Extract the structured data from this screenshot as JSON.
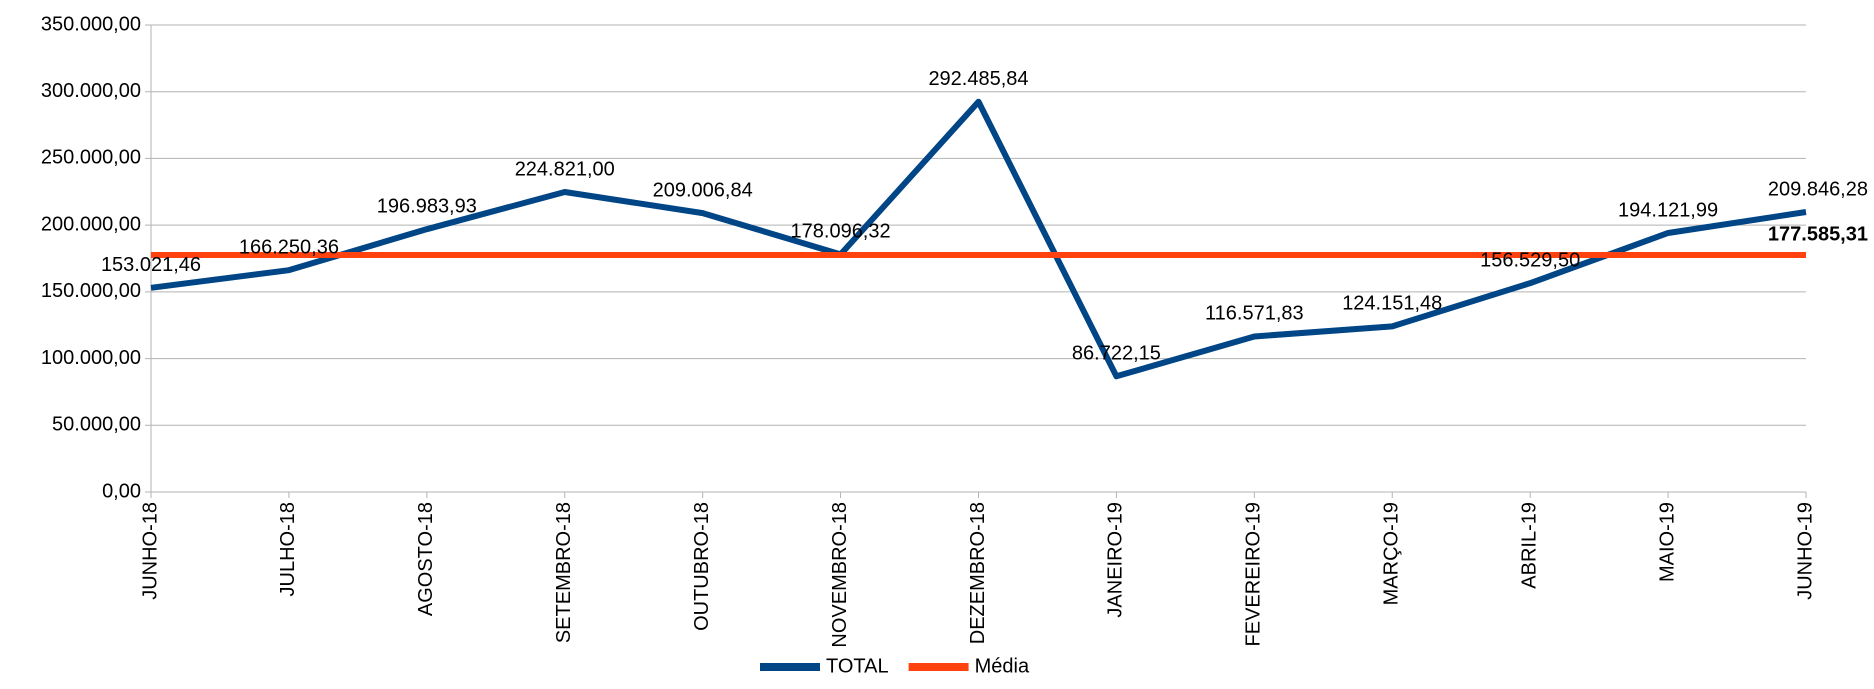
{
  "chart_data": {
    "type": "line",
    "categories": [
      "JUNHO-18",
      "JULHO-18",
      "AGOSTO-18",
      "SETEMBRO-18",
      "OUTUBRO-18",
      "NOVEMBRO-18",
      "DEZEMBRO-18",
      "JANEIRO-19",
      "FEVEREIRO-19",
      "MARÇO-19",
      "ABRIL-19",
      "MAIO-19",
      "JUNHO-19"
    ],
    "series": [
      {
        "name": "TOTAL",
        "color": "#004586",
        "values": [
          153021.46,
          166250.36,
          196983.93,
          224821.0,
          209006.84,
          178096.32,
          292485.84,
          86722.15,
          116571.83,
          124151.48,
          156529.5,
          194121.99,
          209846.28
        ],
        "value_labels": [
          "153.021,46",
          "166.250,36",
          "196.983,93",
          "224.821,00",
          "209.006,84",
          "178.096,32",
          "292.485,84",
          "86.722,15",
          "116.571,83",
          "124.151,48",
          "156.529,50",
          "194.121,99",
          "209.846,28"
        ]
      },
      {
        "name": "Média",
        "color": "#ff420e",
        "values": [
          177585.31,
          177585.31,
          177585.31,
          177585.31,
          177585.31,
          177585.31,
          177585.31,
          177585.31,
          177585.31,
          177585.31,
          177585.31,
          177585.31,
          177585.31
        ],
        "value_labels": [
          null,
          null,
          null,
          null,
          null,
          null,
          null,
          null,
          null,
          null,
          null,
          null,
          "177.585,31"
        ]
      }
    ],
    "ylim": [
      0,
      350000
    ],
    "yticks": [
      {
        "value": 0,
        "label": "0,00"
      },
      {
        "value": 50000,
        "label": "50.000,00"
      },
      {
        "value": 100000,
        "label": "100.000,00"
      },
      {
        "value": 150000,
        "label": "150.000,00"
      },
      {
        "value": 200000,
        "label": "200.000,00"
      },
      {
        "value": 250000,
        "label": "250.000,00"
      },
      {
        "value": 300000,
        "label": "300.000,00"
      },
      {
        "value": 350000,
        "label": "350.000,00"
      }
    ],
    "grid": true,
    "legend": "bottom"
  }
}
